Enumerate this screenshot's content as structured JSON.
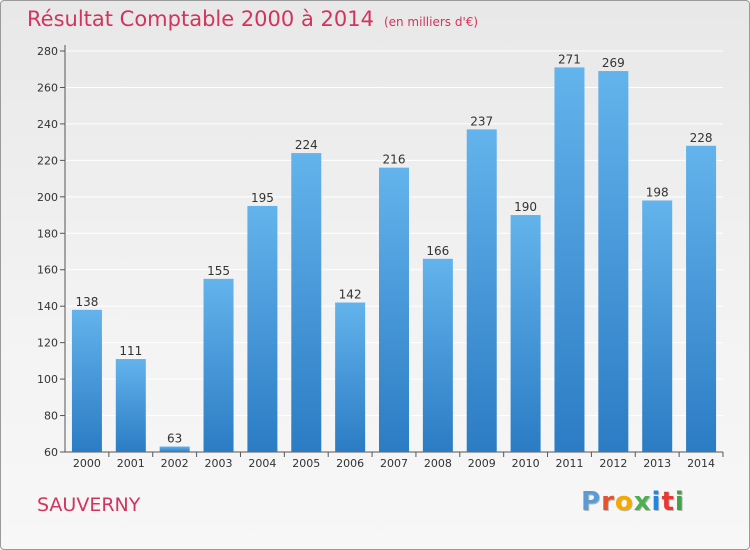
{
  "header": {
    "title": "Résultat Comptable 2000 à 2014",
    "unit": "(en milliers d'€)"
  },
  "footer": {
    "city": "SAUVERNY",
    "logo_text": "Proxiti",
    "logo_colors": [
      "#5b9bd5",
      "#e94f2e",
      "#f2a900",
      "#4caf50",
      "#1e88e5",
      "#e53935",
      "#43a047"
    ]
  },
  "colors": {
    "bar_light": "#63b3ec",
    "bar_dark": "#2b7cc4",
    "title": "#d2345d",
    "grid": "#ffffff"
  },
  "chart_data": {
    "type": "bar",
    "title": "Résultat Comptable 2000 à 2014",
    "xlabel": "",
    "ylabel": "",
    "categories": [
      "2000",
      "2001",
      "2002",
      "2003",
      "2004",
      "2005",
      "2006",
      "2007",
      "2008",
      "2009",
      "2010",
      "2011",
      "2012",
      "2013",
      "2014"
    ],
    "values": [
      138,
      111,
      63,
      155,
      195,
      224,
      142,
      216,
      166,
      237,
      190,
      271,
      269,
      198,
      228
    ],
    "ylim": [
      60,
      280
    ],
    "yticks": [
      60,
      80,
      100,
      120,
      140,
      160,
      180,
      200,
      220,
      240,
      260,
      280
    ],
    "grid": true,
    "data_labels": true
  }
}
